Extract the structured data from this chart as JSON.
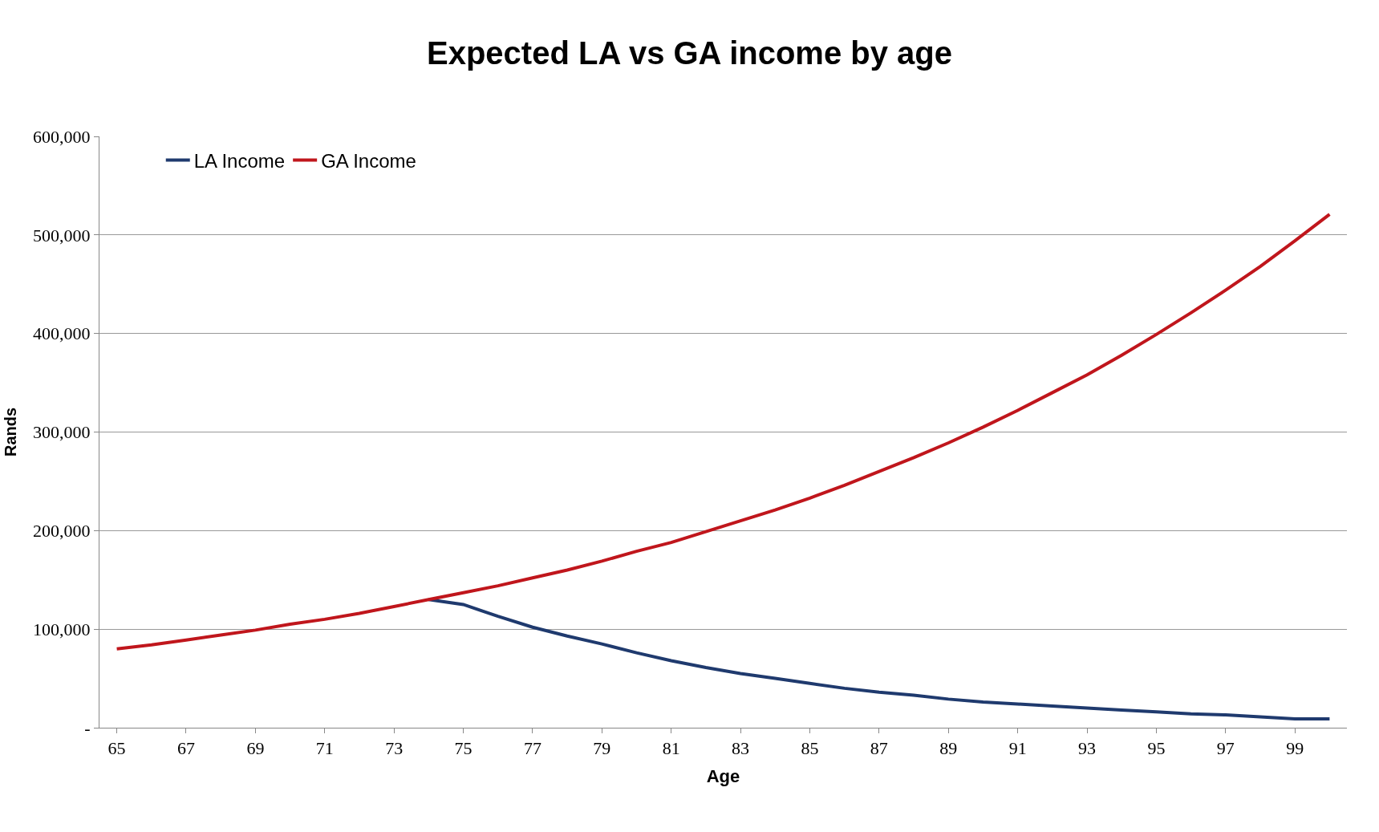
{
  "chart_data": {
    "type": "line",
    "title": "Expected LA vs GA income by age",
    "xlabel": "Age",
    "ylabel": "Rands",
    "categories": [
      "65",
      null,
      "67",
      null,
      "69",
      null,
      "71",
      null,
      "73",
      null,
      "75",
      null,
      "77",
      null,
      "79",
      null,
      "81",
      null,
      "83",
      null,
      "85",
      null,
      "87",
      null,
      "89",
      null,
      "91",
      null,
      "93",
      null,
      "95",
      null,
      "97",
      null,
      "99",
      null
    ],
    "series": [
      {
        "name": "LA Income",
        "color": "#1f3a6e",
        "values": [
          null,
          null,
          null,
          null,
          null,
          null,
          null,
          null,
          null,
          130000,
          125000,
          113000,
          102000,
          93000,
          85000,
          76000,
          68000,
          61000,
          55000,
          50000,
          45000,
          40000,
          36000,
          33000,
          29000,
          26000,
          24000,
          22000,
          20000,
          18000,
          16000,
          14000,
          13000,
          11000,
          9000,
          9000
        ]
      },
      {
        "name": "GA Income",
        "color": "#c0161c",
        "values": [
          80000,
          84000,
          89000,
          94000,
          99000,
          105000,
          110000,
          116000,
          123000,
          130000,
          137000,
          144000,
          152000,
          160000,
          169000,
          179000,
          188000,
          199000,
          210000,
          221000,
          233000,
          246000,
          260000,
          274000,
          289000,
          305000,
          322000,
          340000,
          358000,
          378000,
          399000,
          421000,
          444000,
          468000,
          494000,
          521000
        ]
      }
    ],
    "ylim": [
      0,
      600000
    ],
    "yticks": [
      {
        "value": 0,
        "label": "-"
      },
      {
        "value": 100000,
        "label": "100,000"
      },
      {
        "value": 200000,
        "label": "200,000"
      },
      {
        "value": 300000,
        "label": "300,000"
      },
      {
        "value": 400000,
        "label": "400,000"
      },
      {
        "value": 500000,
        "label": "500,000"
      },
      {
        "value": 600000,
        "label": "600,000"
      }
    ],
    "grid": "y",
    "legend": "top left",
    "marker": "none",
    "line_style": "solid"
  }
}
